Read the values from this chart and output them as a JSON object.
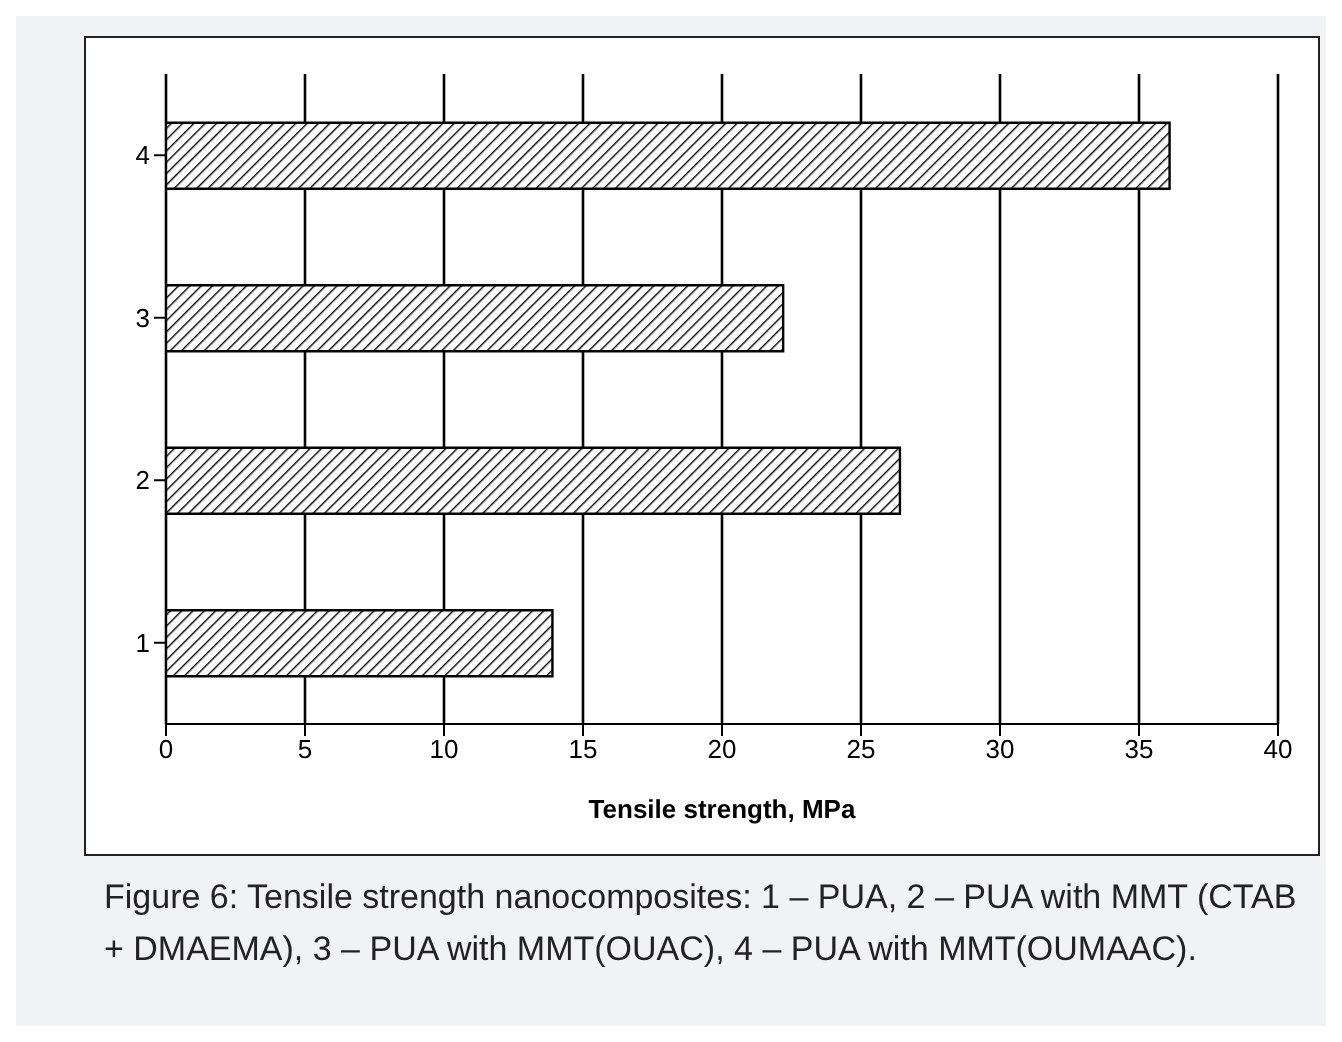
{
  "chart_data": {
    "type": "bar",
    "orientation": "horizontal",
    "categories": [
      "4",
      "3",
      "2",
      "1"
    ],
    "values": [
      36.1,
      22.2,
      26.4,
      13.9
    ],
    "color": "#000000",
    "xlabel": "Tensile strength, MPa",
    "xlim": [
      0,
      40
    ],
    "xticks": [
      0,
      5,
      10,
      15,
      20,
      25,
      30,
      35,
      40
    ],
    "grid": "x",
    "annotations": [
      "Figure 6: Tensile strength nanocomposites: 1 – PUA, 2 – PUA with MMT (CTAB + DMAEMA), 3 – PUA with MMT(OUAC), 4 – PUA with MMT(OUMAAC)."
    ]
  }
}
